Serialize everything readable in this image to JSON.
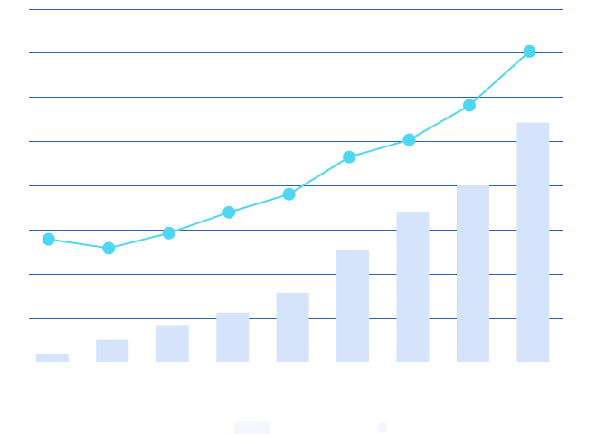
{
  "chart_data": {
    "type": "bar+line",
    "title": "",
    "xlabel": "",
    "ylabel": "",
    "ylim": [
      0,
      8
    ],
    "grid": true,
    "legend": "bottom",
    "series": [
      {
        "type": "bar",
        "color": "#d6e4fb",
        "values": [
          0.18,
          0.51,
          0.82,
          1.12,
          1.57,
          2.54,
          3.39,
          4.0,
          5.42
        ]
      },
      {
        "type": "line",
        "color": "#4fd6f2",
        "values": [
          2.78,
          2.58,
          2.92,
          3.39,
          3.8,
          4.64,
          5.03,
          5.81,
          7.03
        ]
      }
    ],
    "grid_color": "#2a62c0",
    "legend_bar_color": "#f4f7fe",
    "legend_line_color": "#f2f6fd"
  }
}
